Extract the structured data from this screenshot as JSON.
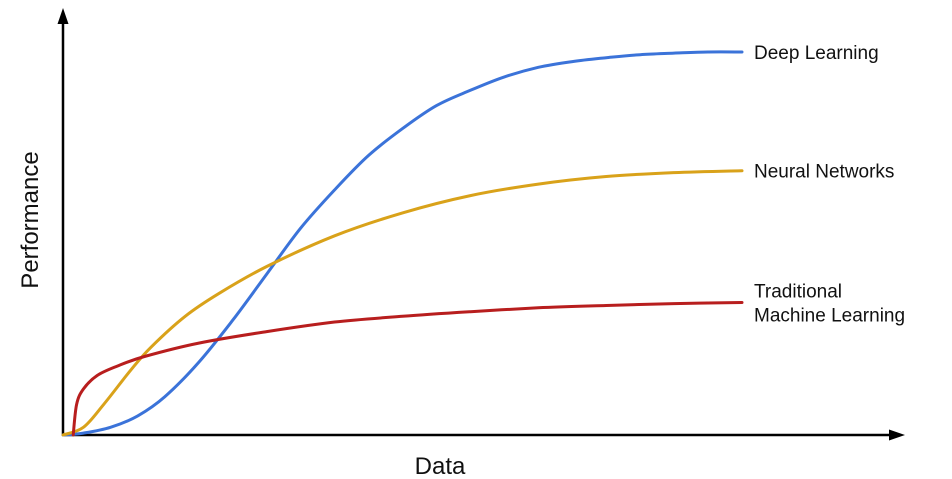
{
  "chart_data": {
    "type": "line",
    "title": "",
    "xlabel": "Data",
    "ylabel": "Performance",
    "xlim": [
      0,
      100
    ],
    "ylim": [
      0,
      100
    ],
    "grid": false,
    "legend": "labels at line ends",
    "series": [
      {
        "name": "Deep Learning",
        "color": "#3b73d9",
        "x": [
          0,
          3,
          7,
          11,
          15,
          20,
          25,
          30,
          35,
          40,
          45,
          50,
          55,
          60,
          65,
          70,
          75,
          80,
          85,
          90,
          95,
          100
        ],
        "y": [
          0,
          0.5,
          2,
          5,
          10,
          19,
          30,
          42,
          54,
          64,
          73,
          80,
          86,
          90,
          93.5,
          96,
          97.5,
          98.5,
          99.3,
          99.7,
          100,
          100
        ]
      },
      {
        "name": "Neural Networks",
        "color": "#d9a21a",
        "x": [
          0,
          3,
          6,
          10,
          13,
          18,
          23,
          30,
          40,
          50,
          60,
          70,
          80,
          90,
          100
        ],
        "y": [
          0,
          2,
          8,
          17,
          23,
          31,
          37,
          44,
          52,
          58,
          62.5,
          65.5,
          67.5,
          68.5,
          69
        ]
      },
      {
        "name": "Traditional\nMachine Learning",
        "color": "#b81e1e",
        "x": [
          1.5,
          2,
          3,
          5,
          8,
          12,
          20,
          30,
          40,
          50,
          60,
          70,
          80,
          90,
          100
        ],
        "y": [
          0,
          8,
          12,
          15.5,
          18,
          20.5,
          24,
          27,
          29.5,
          31,
          32.2,
          33.2,
          33.8,
          34.3,
          34.6
        ]
      }
    ]
  }
}
